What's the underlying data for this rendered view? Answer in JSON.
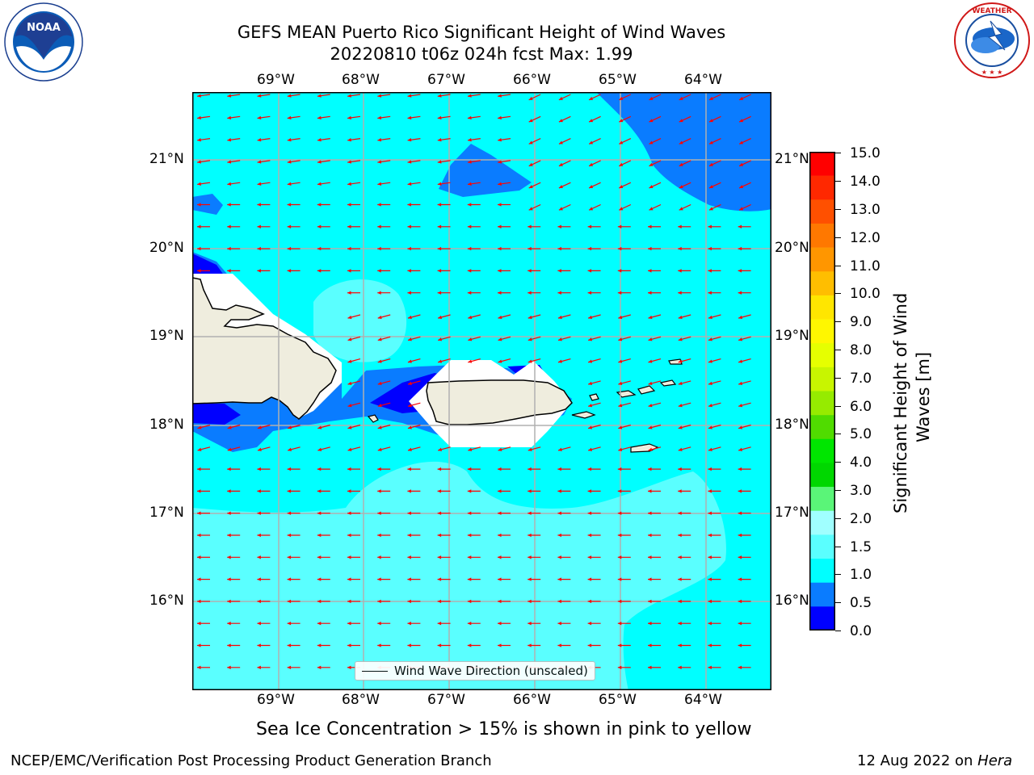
{
  "header": {
    "title_line1": "GEFS MEAN Puerto Rico Significant Height of Wind Waves",
    "title_line2": "20220810 t06z 024h fcst   Max: 1.99"
  },
  "logos": {
    "left": {
      "text": "NOAA",
      "ring_text": "NATIONAL OCEANIC AND ATMOSPHERIC ADMINISTRATION · U.S. DEPARTMENT OF COMMERCE"
    },
    "right": {
      "ring_text": "NATIONAL WEATHER SERVICE"
    }
  },
  "map": {
    "lon_labels": [
      "69°W",
      "68°W",
      "67°W",
      "66°W",
      "65°W",
      "64°W"
    ],
    "lat_labels": [
      "21°N",
      "20°N",
      "19°N",
      "18°N",
      "17°N",
      "16°N"
    ],
    "legend_label": "Wind Wave Direction (unscaled)",
    "arrow_color": "#ff0000",
    "land_color": "#efedde",
    "grid_color": "#b0b0b0"
  },
  "colorbar": {
    "title_line1": "Significant Height of Wind",
    "title_line2": "Waves [m]",
    "ticks": [
      "15.0",
      "14.0",
      "13.0",
      "12.0",
      "11.0",
      "10.0",
      "9.0",
      "8.0",
      "7.0",
      "6.0",
      "5.0",
      "4.0",
      "3.0",
      "2.0",
      "1.5",
      "1.0",
      "0.5",
      "0.0"
    ],
    "colors": [
      "#ff0000",
      "#ff2800",
      "#ff5000",
      "#ff7800",
      "#ff9600",
      "#ffbe00",
      "#ffe600",
      "#fff700",
      "#e6ff00",
      "#c8f500",
      "#96eb00",
      "#50dc00",
      "#00e600",
      "#00d700",
      "#5af578",
      "#a0ffff",
      "#5affff",
      "#00ffff",
      "#0a7cff",
      "#0000ff"
    ]
  },
  "notes": {
    "sea_ice": "Sea Ice Concentration > 15% is shown in pink to yellow"
  },
  "footer": {
    "left": "NCEP/EMC/Verification Post Processing Product Generation Branch",
    "right_prefix": "12 Aug 2022 on ",
    "right_host": "Hera"
  }
}
